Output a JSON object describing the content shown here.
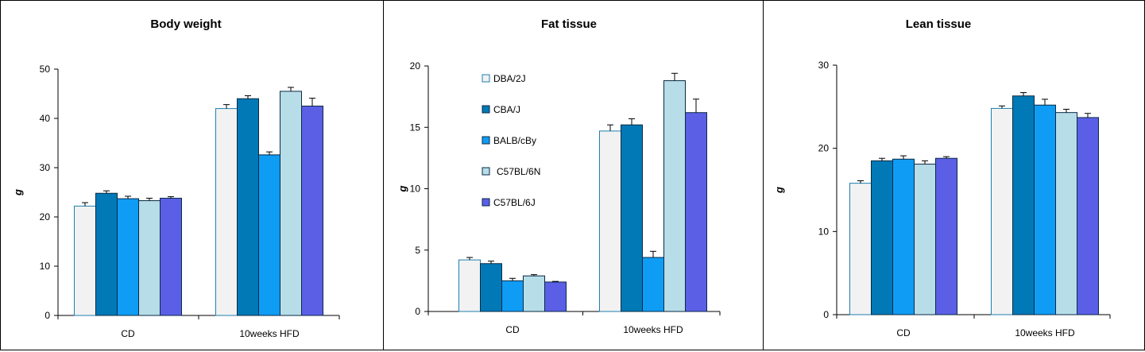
{
  "series_styles": [
    {
      "name": "DBA/2J",
      "fill": "#f2f2f2",
      "stroke": "#1f7fb0"
    },
    {
      "name": "CBA/J",
      "fill": "#0079b6",
      "stroke": "#0a2a44"
    },
    {
      "name": "BALB/cBy",
      "fill": "#0f9cf5",
      "stroke": "#0a2a44"
    },
    {
      "name": "C57BL/6N",
      "fill": "#b7dde8",
      "stroke": "#0a2a44"
    },
    {
      "name": "C57BL/6J",
      "fill": "#5b5fe6",
      "stroke": "#0a2a44"
    }
  ],
  "chart_data": [
    {
      "type": "bar",
      "title": "Body weight",
      "ylabel": "g",
      "ylim": [
        0,
        50
      ],
      "yticks": [
        0,
        10,
        20,
        30,
        40,
        50
      ],
      "categories": [
        "CD",
        "10weeks HFD"
      ],
      "legend": false,
      "series": [
        {
          "name": "DBA/2J",
          "values": [
            22.2,
            42.0
          ],
          "errors": [
            0.7,
            0.8
          ]
        },
        {
          "name": "CBA/J",
          "values": [
            24.8,
            44.0
          ],
          "errors": [
            0.5,
            0.6
          ]
        },
        {
          "name": "BALB/cBy",
          "values": [
            23.7,
            32.6
          ],
          "errors": [
            0.5,
            0.6
          ]
        },
        {
          "name": "C57BL/6N",
          "values": [
            23.3,
            45.5
          ],
          "errors": [
            0.5,
            0.8
          ]
        },
        {
          "name": "C57BL/6J",
          "values": [
            23.8,
            42.5
          ],
          "errors": [
            0.3,
            1.6
          ]
        }
      ]
    },
    {
      "type": "bar",
      "title": "Fat tissue",
      "ylabel": "g",
      "ylim": [
        0,
        20
      ],
      "yticks": [
        0,
        5,
        10,
        15,
        20
      ],
      "categories": [
        "CD",
        "10weeks HFD"
      ],
      "legend": true,
      "series": [
        {
          "name": "DBA/2J",
          "values": [
            4.2,
            14.7
          ],
          "errors": [
            0.2,
            0.5
          ]
        },
        {
          "name": "CBA/J",
          "values": [
            3.9,
            15.2
          ],
          "errors": [
            0.2,
            0.5
          ]
        },
        {
          "name": "BALB/cBy",
          "values": [
            2.5,
            4.4
          ],
          "errors": [
            0.2,
            0.5
          ]
        },
        {
          "name": "C57BL/6N",
          "values": [
            2.9,
            18.8
          ],
          "errors": [
            0.1,
            0.6
          ]
        },
        {
          "name": "C57BL/6J",
          "values": [
            2.4,
            16.2
          ],
          "errors": [
            0.05,
            1.1
          ]
        }
      ]
    },
    {
      "type": "bar",
      "title": "Lean tissue",
      "ylabel": "g",
      "ylim": [
        0,
        30
      ],
      "yticks": [
        0,
        10,
        20,
        30
      ],
      "categories": [
        "CD",
        "10weeks HFD"
      ],
      "legend": false,
      "series": [
        {
          "name": "DBA/2J",
          "values": [
            15.8,
            24.8
          ],
          "errors": [
            0.3,
            0.3
          ]
        },
        {
          "name": "CBA/J",
          "values": [
            18.5,
            26.3
          ],
          "errors": [
            0.3,
            0.4
          ]
        },
        {
          "name": "BALB/cBy",
          "values": [
            18.7,
            25.2
          ],
          "errors": [
            0.4,
            0.7
          ]
        },
        {
          "name": "C57BL/6N",
          "values": [
            18.1,
            24.3
          ],
          "errors": [
            0.4,
            0.4
          ]
        },
        {
          "name": "C57BL/6J",
          "values": [
            18.8,
            23.7
          ],
          "errors": [
            0.2,
            0.5
          ]
        }
      ]
    }
  ]
}
